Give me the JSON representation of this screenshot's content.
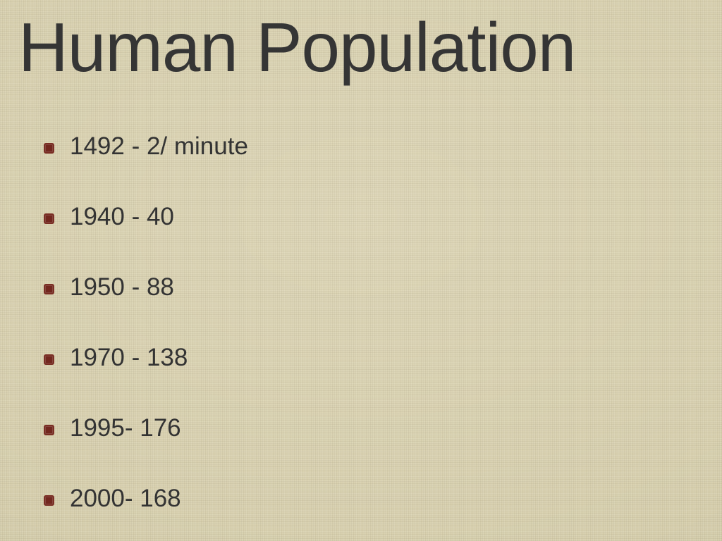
{
  "slide": {
    "title": "Human Population",
    "items": [
      {
        "text": "1492 - 2/ minute"
      },
      {
        "text": "1940 - 40"
      },
      {
        "text": "1950 - 88"
      },
      {
        "text": "1970 - 138"
      },
      {
        "text": "1995- 176"
      },
      {
        "text": "2000- 168"
      }
    ]
  },
  "style": {
    "background_color": "#d8d0af",
    "title_color": "#353535",
    "text_color": "#333333",
    "bullet_color": "#72271e",
    "bullet_border": "#7a2e24",
    "title_fontsize": 98,
    "item_fontsize": 35,
    "font_family": "Arial, Helvetica, sans-serif"
  }
}
